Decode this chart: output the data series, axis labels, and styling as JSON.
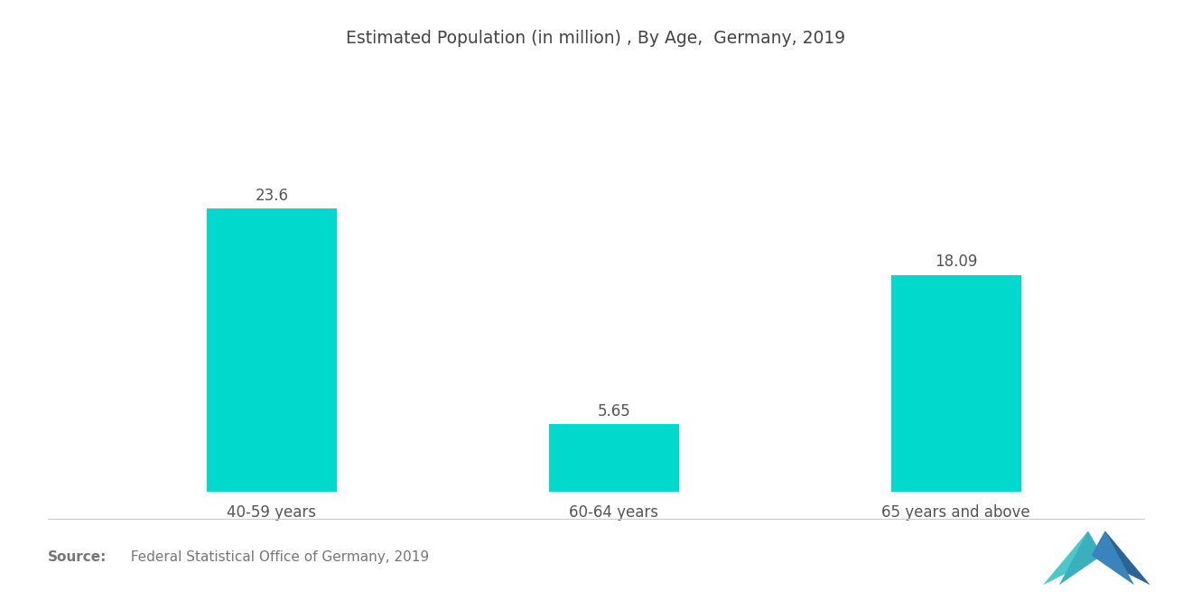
{
  "title": "Estimated Population (in million) , By Age,  Germany, 2019",
  "categories": [
    "40-59 years",
    "60-64 years",
    "65 years and above"
  ],
  "values": [
    23.6,
    5.65,
    18.09
  ],
  "bar_color": "#00D9CC",
  "background_color": "#ffffff",
  "ylim": [
    0,
    30
  ],
  "source_bold": "Source:",
  "source_text": "  Federal Statistical Office of Germany, 2019",
  "title_fontsize": 13.5,
  "label_fontsize": 12,
  "value_fontsize": 12,
  "source_fontsize": 11,
  "bar_width": 0.38,
  "x_positions": [
    0,
    1,
    2
  ],
  "xlim": [
    -0.55,
    2.55
  ],
  "logo_colors_left": [
    "#5BC8C8",
    "#3BA8C8"
  ],
  "logo_colors_right": [
    "#2E6EA6",
    "#1A4E7A"
  ]
}
